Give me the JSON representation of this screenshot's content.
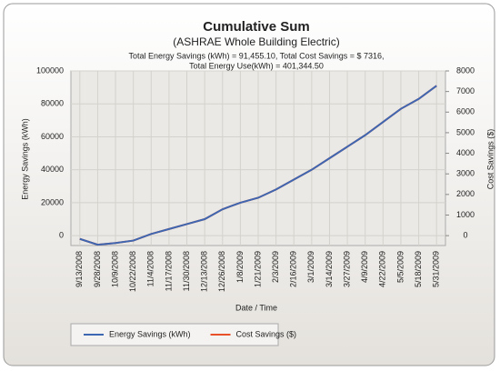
{
  "chart_data": {
    "type": "line",
    "title": "Cumulative Sum",
    "subtitle": "(ASHRAE Whole Building Electric)",
    "annotations": [
      "Total Energy Savings (kWh) = 91,455.10, Total Cost Savings = $ 7316,",
      "Total Energy Use(kWh) = 401,344.50"
    ],
    "x_label": "Date / Time",
    "y_label": "Energy Savings (kWh)",
    "y2_label": "Cost Savings ($)",
    "categories": [
      "9/13/2008",
      "9/28/2008",
      "10/9/2008",
      "10/22/2008",
      "11/4/2008",
      "11/17/2008",
      "11/30/2008",
      "12/13/2008",
      "12/26/2008",
      "1/8/2009",
      "1/21/2009",
      "2/3/2009",
      "2/16/2009",
      "3/1/2009",
      "3/14/2009",
      "3/27/2009",
      "4/9/2009",
      "4/22/2009",
      "5/5/2009",
      "5/18/2009",
      "5/31/2009"
    ],
    "series": [
      {
        "name": "Energy Savings (kWh)",
        "color": "#3f67b1",
        "values": [
          -2000,
          -5500,
          -4500,
          -3000,
          1000,
          4000,
          7000,
          10000,
          16000,
          20000,
          23000,
          28000,
          34000,
          40000,
          47000,
          54000,
          61000,
          69000,
          77000,
          83000,
          91000
        ]
      },
      {
        "name": "Cost Savings ($)",
        "color": "#e8502a",
        "axis": "y2",
        "values": [
          -160,
          -440,
          -360,
          -240,
          80,
          320,
          560,
          800,
          1280,
          1600,
          1840,
          2240,
          2720,
          3200,
          3760,
          4320,
          4880,
          5520,
          6160,
          6640,
          7280
        ]
      }
    ],
    "ylim": [
      -6000,
      100000
    ],
    "yticks": [
      0,
      20000,
      40000,
      60000,
      80000,
      100000
    ],
    "y2lim": [
      -480,
      8000
    ],
    "y2ticks": [
      0,
      1000,
      2000,
      3000,
      4000,
      5000,
      6000,
      7000,
      8000
    ],
    "grid": true,
    "legend": "bottom"
  }
}
